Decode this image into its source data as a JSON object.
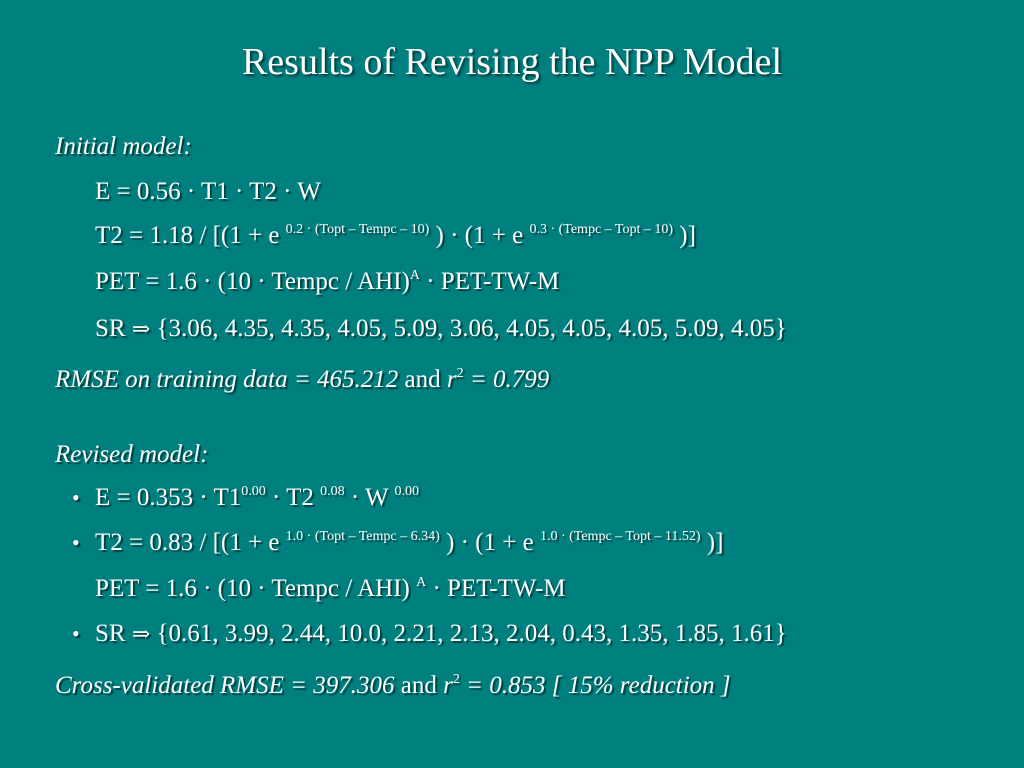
{
  "title": "Results of Revising the NPP Model",
  "initial": {
    "heading": "Initial model:",
    "e_line": "E = 0.56 · T1 · T2 · W",
    "t2_a": "T2 = 1.18 / [(1 + e ",
    "t2_sup1": "0.2 · (Topt – Tempc – 10)",
    "t2_b": " ) · (1 + e ",
    "t2_sup2": "0.3 · (Tempc – Topt – 10)",
    "t2_c": " )]",
    "pet_a": "PET = 1.6 · (10 · Tempc / AHI)",
    "pet_sup": "A",
    "pet_b": " · PET-TW-M",
    "sr_a": "SR ",
    "sr_arrow": "⇒",
    "sr_b": " {3.06, 4.35, 4.35, 4.05, 5.09, 3.06, 4.05, 4.05, 4.05, 5.09, 4.05}",
    "rmse_a": "RMSE on training data = 465.212",
    "rmse_and": " and ",
    "rmse_r": "r",
    "rmse_sup": "2",
    "rmse_b": " = 0.799"
  },
  "revised": {
    "heading": "Revised model:",
    "bullet": "•",
    "e_a": "E = 0.353 · T1",
    "e_sup1": "0.00",
    "e_b": " · T2 ",
    "e_sup2": "0.08",
    "e_c": " · W ",
    "e_sup3": "0.00",
    "t2_a": "T2 = 0.83 / [(1 + e ",
    "t2_sup1": "1.0 · (Topt – Tempc – 6.34)",
    "t2_b": " ) · (1 + e ",
    "t2_sup2": "1.0 · (Tempc – Topt – 11.52)",
    "t2_c": " )]",
    "pet_a": "PET = 1.6 · (10 · Tempc / AHI) ",
    "pet_sup": "A",
    "pet_b": " · PET-TW-M",
    "sr_a": "SR ",
    "sr_arrow": "⇒",
    "sr_b": " {0.61, 3.99, 2.44, 10.0, 2.21, 2.13, 2.04, 0.43, 1.35, 1.85, 1.61}",
    "cv_a": "Cross-validated  RMSE = 397.306",
    "cv_and": " and ",
    "cv_r": "r",
    "cv_sup": "2",
    "cv_b": " = 0.853 [ 15% reduction ]"
  },
  "colors": {
    "background": "#007f7f",
    "text": "#ffffff"
  }
}
